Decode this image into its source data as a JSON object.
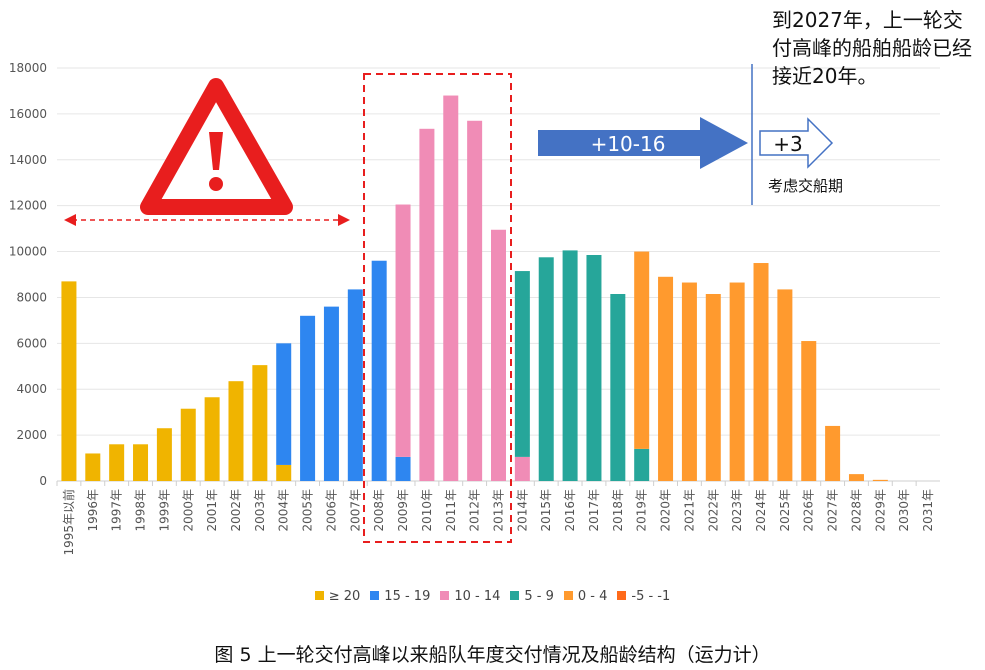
{
  "colors": {
    "ge20": "#F0B400",
    "15-19": "#2E86F0",
    "10-14": "#F08CB6",
    "5-9": "#26A69A",
    "0-4": "#FF9A2E",
    "neg": "#FF6A1A",
    "warning": "#E81E1E",
    "arrow": "#4472C4"
  },
  "chart_data": {
    "type": "bar",
    "stacked": true,
    "categories": [
      "1995年以前",
      "1996年",
      "1997年",
      "1998年",
      "1999年",
      "2000年",
      "2001年",
      "2002年",
      "2003年",
      "2004年",
      "2005年",
      "2006年",
      "2007年",
      "2008年",
      "2009年",
      "2010年",
      "2011年",
      "2012年",
      "2013年",
      "2014年",
      "2015年",
      "2016年",
      "2017年",
      "2018年",
      "2019年",
      "2020年",
      "2021年",
      "2022年",
      "2023年",
      "2024年",
      "2025年",
      "2026年",
      "2027年",
      "2028年",
      "2029年",
      "2030年",
      "2031年"
    ],
    "ylim": [
      0,
      18000
    ],
    "yticks": [
      0,
      2000,
      4000,
      6000,
      8000,
      10000,
      12000,
      14000,
      16000,
      18000
    ],
    "grid": true,
    "legend_position": "bottom",
    "series": [
      {
        "name": "≥ 20",
        "color_key": "ge20",
        "values": [
          8700,
          1200,
          1600,
          1600,
          2300,
          3150,
          3650,
          4350,
          5050,
          700,
          0,
          0,
          0,
          0,
          0,
          0,
          0,
          0,
          0,
          0,
          0,
          0,
          0,
          0,
          0,
          0,
          0,
          0,
          0,
          0,
          0,
          0,
          0,
          0,
          0,
          0,
          0
        ]
      },
      {
        "name": "15 - 19",
        "color_key": "15-19",
        "values": [
          0,
          0,
          0,
          0,
          0,
          0,
          0,
          0,
          0,
          5300,
          7200,
          7600,
          8350,
          9600,
          1050,
          0,
          0,
          0,
          0,
          0,
          0,
          0,
          0,
          0,
          0,
          0,
          0,
          0,
          0,
          0,
          0,
          0,
          0,
          0,
          0,
          0,
          0
        ]
      },
      {
        "name": "10 - 14",
        "color_key": "10-14",
        "values": [
          0,
          0,
          0,
          0,
          0,
          0,
          0,
          0,
          0,
          0,
          0,
          0,
          0,
          0,
          11000,
          15350,
          16800,
          15700,
          10950,
          1050,
          0,
          0,
          0,
          0,
          0,
          0,
          0,
          0,
          0,
          0,
          0,
          0,
          0,
          0,
          0,
          0,
          0
        ]
      },
      {
        "name": "5 - 9",
        "color_key": "5-9",
        "values": [
          0,
          0,
          0,
          0,
          0,
          0,
          0,
          0,
          0,
          0,
          0,
          0,
          0,
          0,
          0,
          0,
          0,
          0,
          0,
          8100,
          9750,
          10050,
          9850,
          8150,
          1400,
          0,
          0,
          0,
          0,
          0,
          0,
          0,
          0,
          0,
          0,
          0,
          0
        ]
      },
      {
        "name": "0 - 4",
        "color_key": "0-4",
        "values": [
          0,
          0,
          0,
          0,
          0,
          0,
          0,
          0,
          0,
          0,
          0,
          0,
          0,
          0,
          0,
          0,
          0,
          0,
          0,
          0,
          0,
          0,
          0,
          0,
          8600,
          8900,
          8650,
          8150,
          8650,
          9500,
          8350,
          6100,
          2400,
          300,
          50,
          0,
          0
        ]
      },
      {
        "name": "-5 - -1",
        "color_key": "neg",
        "values": [
          0,
          0,
          0,
          0,
          0,
          0,
          0,
          0,
          0,
          0,
          0,
          0,
          0,
          0,
          0,
          0,
          0,
          0,
          0,
          0,
          0,
          0,
          0,
          0,
          0,
          0,
          0,
          0,
          0,
          0,
          0,
          0,
          0,
          0,
          0,
          0,
          0
        ]
      }
    ]
  },
  "annotations": {
    "arrow_main": "+10-16",
    "arrow_small": "+3",
    "note_main": "到2027年，上一轮交付高峰的船舶船龄已经接近20年。",
    "note_small": "考虑交船期",
    "warning_icon": "warning-triangle-icon"
  },
  "caption": "图 5 上一轮交付高峰以来船队年度交付情况及船龄结构（运力计）"
}
